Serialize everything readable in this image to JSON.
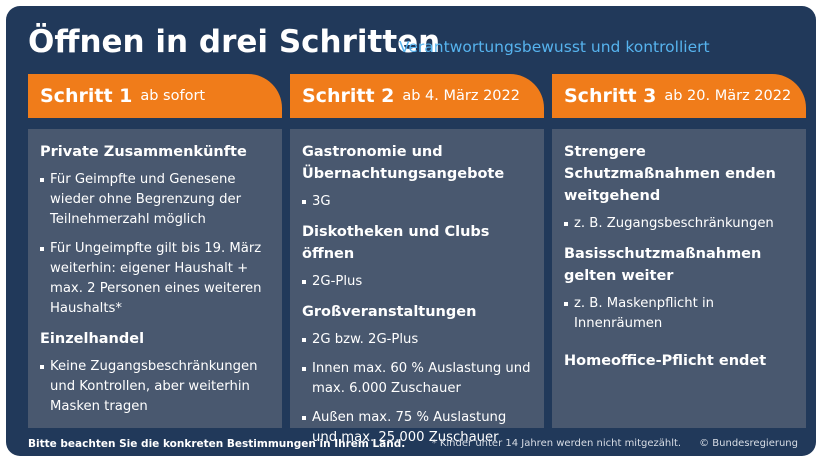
{
  "title": "Öffnen in drei Schritten",
  "subtitle": "Verantwortungsbewusst und kontrolliert",
  "colors": {
    "background": "#21395a",
    "header_orange": "#f07c1a",
    "panel": "#49586f",
    "subtitle_blue": "#56b3ee"
  },
  "steps": [
    {
      "name": "Schritt 1",
      "date": "ab sofort",
      "blocks": [
        {
          "heading": "Private Zusammenkünfte",
          "bullets": [
            "Für Geimpfte und Genesene wieder ohne Begrenzung der Teilnehmerzahl möglich",
            "Für Ungeimpfte gilt bis 19. März weiterhin: eigener Haushalt + max. 2 Personen eines weiteren Haushalts*"
          ]
        },
        {
          "heading": "Einzelhandel",
          "bullets": [
            "Keine Zugangsbeschränkungen und Kontrollen, aber weiterhin Masken tragen"
          ]
        }
      ]
    },
    {
      "name": "Schritt 2",
      "date": "ab 4. März 2022",
      "blocks": [
        {
          "heading": "Gastronomie und Übernachtungsangebote",
          "bullets": [
            "3G"
          ]
        },
        {
          "heading": "Diskotheken und Clubs öffnen",
          "bullets": [
            "2G-Plus"
          ]
        },
        {
          "heading": "Großveranstaltungen",
          "bullets": [
            "2G bzw. 2G-Plus",
            "Innen max. 60 % Auslastung und max. 6.000 Zuschauer",
            "Außen max. 75 % Auslastung und max. 25.000 Zuschauer"
          ]
        }
      ]
    },
    {
      "name": "Schritt 3",
      "date": "ab 20. März 2022",
      "blocks": [
        {
          "heading": "Strengere Schutzmaßnahmen enden weitgehend",
          "bullets": [
            "z. B. Zugangsbeschränkungen"
          ]
        },
        {
          "heading": "Basisschutzmaßnahmen gelten weiter",
          "bullets": [
            "z. B. Maskenpflicht in Innenräumen"
          ]
        },
        {
          "heading": "Homeoffice-Pflicht endet",
          "bullets": []
        }
      ]
    }
  ],
  "footer": {
    "note": "Bitte beachten Sie die konkreten Bestimmungen in Ihrem Land.",
    "footnote": "* Kinder unter 14 Jahren werden nicht mitgezählt.",
    "copyright": "© Bundesregierung"
  }
}
